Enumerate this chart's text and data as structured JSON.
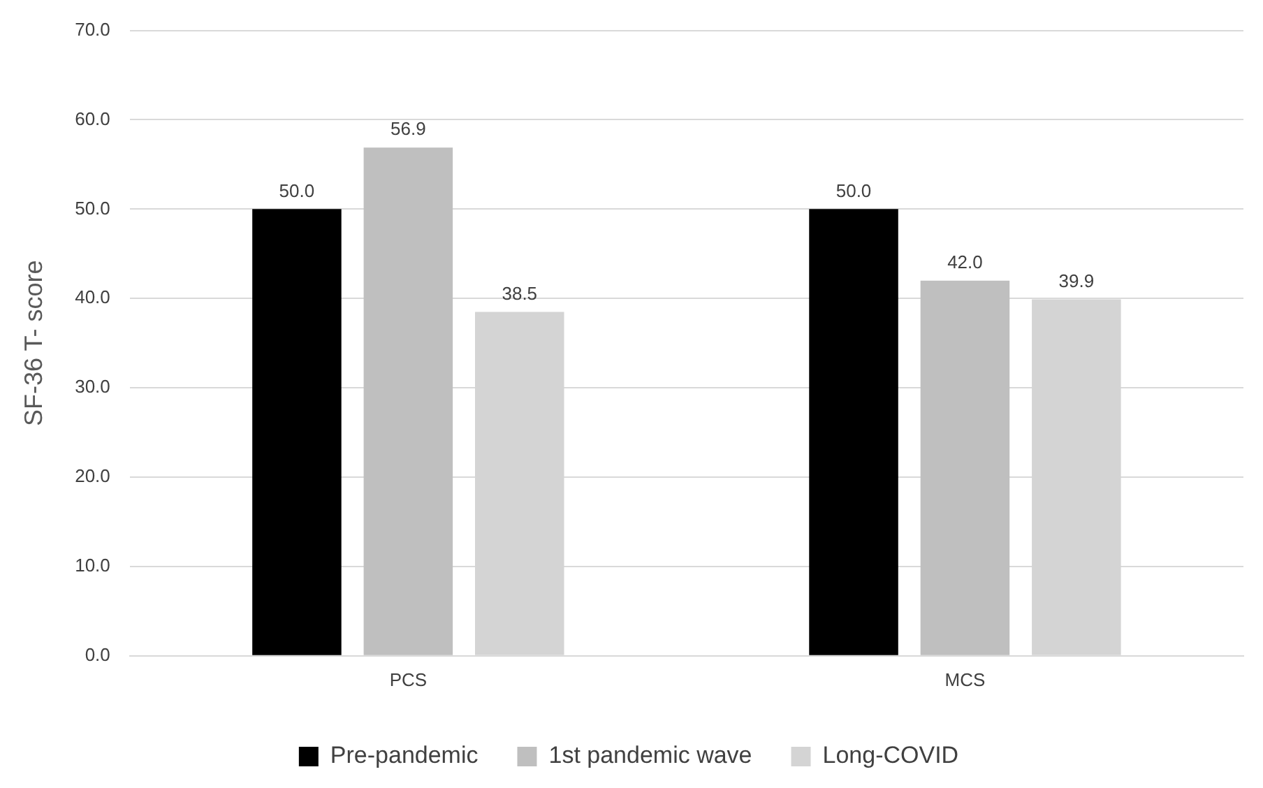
{
  "chart_data": {
    "type": "bar",
    "ylabel": "SF-36 T- score",
    "categories": [
      "PCS",
      "MCS"
    ],
    "series": [
      {
        "name": "Pre-pandemic",
        "color": "#000000",
        "values": [
          50,
          50
        ],
        "value_labels": [
          "50.0",
          "50.0"
        ]
      },
      {
        "name": "1st pandemic wave",
        "color": "#bfbfbf",
        "values": [
          56.9,
          42
        ],
        "value_labels": [
          "56.9",
          "42.0"
        ]
      },
      {
        "name": "Long-COVID",
        "color": "#d4d4d4",
        "values": [
          38.5,
          39.9
        ],
        "value_labels": [
          "38.5",
          "39.9"
        ]
      }
    ],
    "ylim": [
      0,
      70
    ],
    "yticks": [
      {
        "value": 0,
        "label": "0.0"
      },
      {
        "value": 10,
        "label": "10.0"
      },
      {
        "value": 20,
        "label": "20.0"
      },
      {
        "value": 30,
        "label": "30.0"
      },
      {
        "value": 40,
        "label": "40.0"
      },
      {
        "value": 50,
        "label": "50.0"
      },
      {
        "value": 60,
        "label": "60.0"
      },
      {
        "value": 70,
        "label": "70.0"
      }
    ],
    "grid": "y",
    "legend": "bottom"
  }
}
